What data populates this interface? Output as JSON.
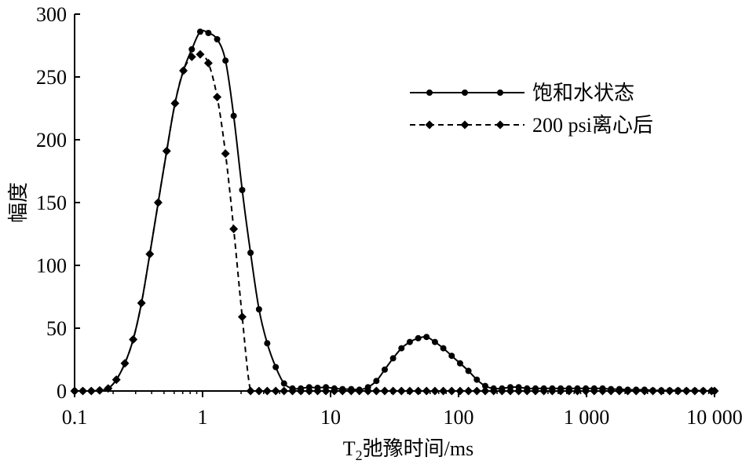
{
  "chart_data": {
    "type": "line",
    "title": "",
    "xlabel": {
      "main": "T",
      "sub": "2",
      "rest": "弛豫时间/ms"
    },
    "ylabel": "幅度",
    "x_scale": "log",
    "xlim": [
      0.1,
      10000
    ],
    "ylim": [
      0,
      300
    ],
    "x_ticks": [
      {
        "v": 0.1,
        "label": "0.1"
      },
      {
        "v": 1,
        "label": "1"
      },
      {
        "v": 10,
        "label": "10"
      },
      {
        "v": 100,
        "label": "100"
      },
      {
        "v": 1000,
        "label": "1 000"
      },
      {
        "v": 10000,
        "label": "10 000"
      }
    ],
    "y_ticks": [
      {
        "v": 0,
        "label": "0"
      },
      {
        "v": 50,
        "label": "50"
      },
      {
        "v": 100,
        "label": "100"
      },
      {
        "v": 150,
        "label": "150"
      },
      {
        "v": 200,
        "label": "200"
      },
      {
        "v": 250,
        "label": "250"
      },
      {
        "v": 300,
        "label": "300"
      }
    ],
    "legend_position": "top-right",
    "series": [
      {
        "name": "饱和水状态",
        "line_style": "solid",
        "marker": "circle",
        "points": [
          [
            0.1,
            0
          ],
          [
            0.116,
            0
          ],
          [
            0.135,
            0
          ],
          [
            0.157,
            0.5
          ],
          [
            0.183,
            2
          ],
          [
            0.212,
            9
          ],
          [
            0.247,
            22
          ],
          [
            0.287,
            41
          ],
          [
            0.333,
            70
          ],
          [
            0.387,
            109
          ],
          [
            0.45,
            150
          ],
          [
            0.524,
            191
          ],
          [
            0.609,
            229
          ],
          [
            0.708,
            255
          ],
          [
            0.824,
            272
          ],
          [
            0.958,
            286
          ],
          [
            1.11,
            285
          ],
          [
            1.3,
            280
          ],
          [
            1.51,
            263
          ],
          [
            1.75,
            219
          ],
          [
            2.04,
            160
          ],
          [
            2.37,
            110
          ],
          [
            2.76,
            65
          ],
          [
            3.2,
            38
          ],
          [
            3.73,
            19
          ],
          [
            4.33,
            6
          ],
          [
            5.04,
            2
          ],
          [
            5.86,
            2
          ],
          [
            6.81,
            3
          ],
          [
            7.92,
            2.5
          ],
          [
            9.2,
            3
          ],
          [
            10.7,
            2
          ],
          [
            12.4,
            1.5
          ],
          [
            14.5,
            1.5
          ],
          [
            16.8,
            1
          ],
          [
            19.6,
            3
          ],
          [
            22.8,
            8
          ],
          [
            26.5,
            17
          ],
          [
            30.8,
            26
          ],
          [
            35.8,
            34
          ],
          [
            41.6,
            39
          ],
          [
            48.4,
            42
          ],
          [
            56.2,
            43
          ],
          [
            65.4,
            39
          ],
          [
            76,
            34
          ],
          [
            88.4,
            28
          ],
          [
            102.8,
            22
          ],
          [
            119.5,
            16
          ],
          [
            139,
            9
          ],
          [
            161.6,
            4
          ],
          [
            188,
            2
          ],
          [
            218.6,
            2
          ],
          [
            254,
            3
          ],
          [
            295,
            3
          ],
          [
            343,
            2
          ],
          [
            399,
            2
          ],
          [
            464,
            2
          ],
          [
            540,
            2
          ],
          [
            628,
            2
          ],
          [
            730,
            2
          ],
          [
            849,
            2
          ],
          [
            987,
            2
          ],
          [
            1148,
            2
          ],
          [
            1335,
            2
          ],
          [
            1552,
            1.5
          ],
          [
            1805,
            1.5
          ],
          [
            2099,
            1
          ],
          [
            2441,
            1
          ],
          [
            2838,
            1
          ],
          [
            3300,
            0.5
          ],
          [
            3838,
            0.5
          ],
          [
            4463,
            0.5
          ],
          [
            5190,
            0.5
          ],
          [
            6035,
            0.3
          ],
          [
            7018,
            0.3
          ],
          [
            8161,
            0.2
          ],
          [
            9490,
            0.1
          ],
          [
            10000,
            0
          ]
        ]
      },
      {
        "name": "200 psi离心后",
        "line_style": "dashed",
        "marker": "diamond",
        "points": [
          [
            0.1,
            0
          ],
          [
            0.116,
            0
          ],
          [
            0.135,
            0
          ],
          [
            0.157,
            0.5
          ],
          [
            0.183,
            2
          ],
          [
            0.212,
            9
          ],
          [
            0.247,
            22
          ],
          [
            0.287,
            41
          ],
          [
            0.333,
            70
          ],
          [
            0.387,
            109
          ],
          [
            0.45,
            150
          ],
          [
            0.524,
            191
          ],
          [
            0.609,
            229
          ],
          [
            0.708,
            255
          ],
          [
            0.824,
            266
          ],
          [
            0.958,
            268
          ],
          [
            1.11,
            261
          ],
          [
            1.3,
            234
          ],
          [
            1.51,
            189
          ],
          [
            1.75,
            129
          ],
          [
            2.04,
            59
          ],
          [
            2.37,
            0
          ],
          [
            2.76,
            0
          ],
          [
            3.2,
            0
          ],
          [
            3.73,
            0
          ],
          [
            4.33,
            0
          ],
          [
            5.04,
            0
          ],
          [
            5.86,
            0
          ],
          [
            6.81,
            0
          ],
          [
            7.92,
            0
          ],
          [
            9.2,
            0
          ],
          [
            10.7,
            0
          ],
          [
            12.4,
            0
          ],
          [
            14.5,
            0
          ],
          [
            16.8,
            0
          ],
          [
            19.6,
            0
          ],
          [
            22.8,
            0
          ],
          [
            26.5,
            0
          ],
          [
            30.8,
            0
          ],
          [
            35.8,
            0
          ],
          [
            41.6,
            0
          ],
          [
            48.4,
            0
          ],
          [
            56.2,
            0
          ],
          [
            65.4,
            0
          ],
          [
            76,
            0
          ],
          [
            88.4,
            0
          ],
          [
            102.8,
            0
          ],
          [
            119.5,
            0
          ],
          [
            139,
            0
          ],
          [
            161.6,
            0
          ],
          [
            188,
            0
          ],
          [
            218.6,
            0
          ],
          [
            254,
            0
          ],
          [
            295,
            0
          ],
          [
            343,
            0
          ],
          [
            399,
            0
          ],
          [
            464,
            0
          ],
          [
            540,
            0
          ],
          [
            628,
            0
          ],
          [
            730,
            0
          ],
          [
            849,
            0
          ],
          [
            987,
            0
          ],
          [
            1148,
            0
          ],
          [
            1335,
            0
          ],
          [
            1552,
            0
          ],
          [
            1805,
            0
          ],
          [
            2099,
            0
          ],
          [
            2441,
            0
          ],
          [
            2838,
            0
          ],
          [
            3300,
            0
          ],
          [
            3838,
            0
          ],
          [
            4463,
            0
          ],
          [
            5190,
            0
          ],
          [
            6035,
            0
          ],
          [
            7018,
            0
          ],
          [
            8161,
            0
          ],
          [
            9490,
            0
          ],
          [
            10000,
            0
          ]
        ]
      }
    ]
  }
}
